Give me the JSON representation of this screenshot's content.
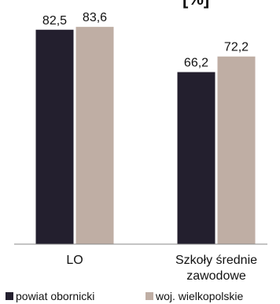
{
  "chart_data": {
    "type": "bar",
    "title": "[%]",
    "categories": [
      "LO",
      "Szkoły średnie zawodowe"
    ],
    "category_lines": [
      [
        "LO"
      ],
      [
        "Szkoły średnie",
        "zawodowe"
      ]
    ],
    "series": [
      {
        "name": "powiat obornicki",
        "values": [
          82.5,
          66.2
        ],
        "labels": [
          "82,5",
          "66,2"
        ],
        "color": "#231f2e"
      },
      {
        "name": "woj. wielkopolskie",
        "values": [
          83.6,
          72.2
        ],
        "labels": [
          "83,6",
          "72,2"
        ],
        "color": "#bfaea4"
      }
    ],
    "ylim": [
      0,
      100
    ],
    "grid": false,
    "legend_position": "bottom"
  }
}
